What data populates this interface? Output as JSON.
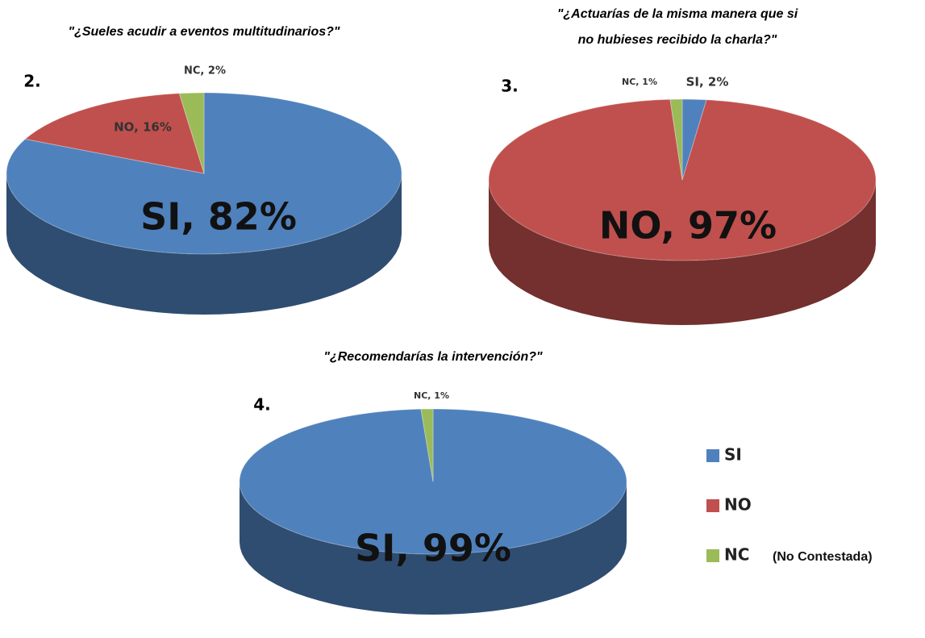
{
  "chart_data": [
    {
      "type": "pie",
      "label": "2.",
      "title": [
        "\"¿Sueles acudir a eventos multitudinarios?\""
      ],
      "categories": [
        "SI",
        "NO",
        "NC"
      ],
      "values": [
        82,
        16,
        2
      ],
      "value_labels": [
        "SI, 82%",
        "NO, 16%",
        "NC, 2%"
      ],
      "colors": [
        "#4f81bd",
        "#c0504d",
        "#9bbb59"
      ]
    },
    {
      "type": "pie",
      "label": "3.",
      "title": [
        "\"¿Actuarías de la misma manera que si",
        "no hubieses recibido la charla?\""
      ],
      "categories": [
        "SI",
        "NO",
        "NC"
      ],
      "values": [
        2,
        97,
        1
      ],
      "value_labels": [
        "SI, 2%",
        "NO, 97%",
        "NC, 1%"
      ],
      "colors": [
        "#4f81bd",
        "#c0504d",
        "#9bbb59"
      ]
    },
    {
      "type": "pie",
      "label": "4.",
      "title": [
        "\"¿Recomendarías la intervención?\""
      ],
      "categories": [
        "SI",
        "NC"
      ],
      "values": [
        99,
        1
      ],
      "value_labels": [
        "SI, 99%",
        "NC, 1%"
      ],
      "colors": [
        "#4f81bd",
        "#9bbb59"
      ]
    }
  ],
  "legend": {
    "entries": [
      {
        "name": "SI",
        "color": "#4f81bd"
      },
      {
        "name": "NO",
        "color": "#c0504d"
      },
      {
        "name": "NC",
        "color": "#9bbb59"
      }
    ],
    "note": "(No Contestada)"
  }
}
